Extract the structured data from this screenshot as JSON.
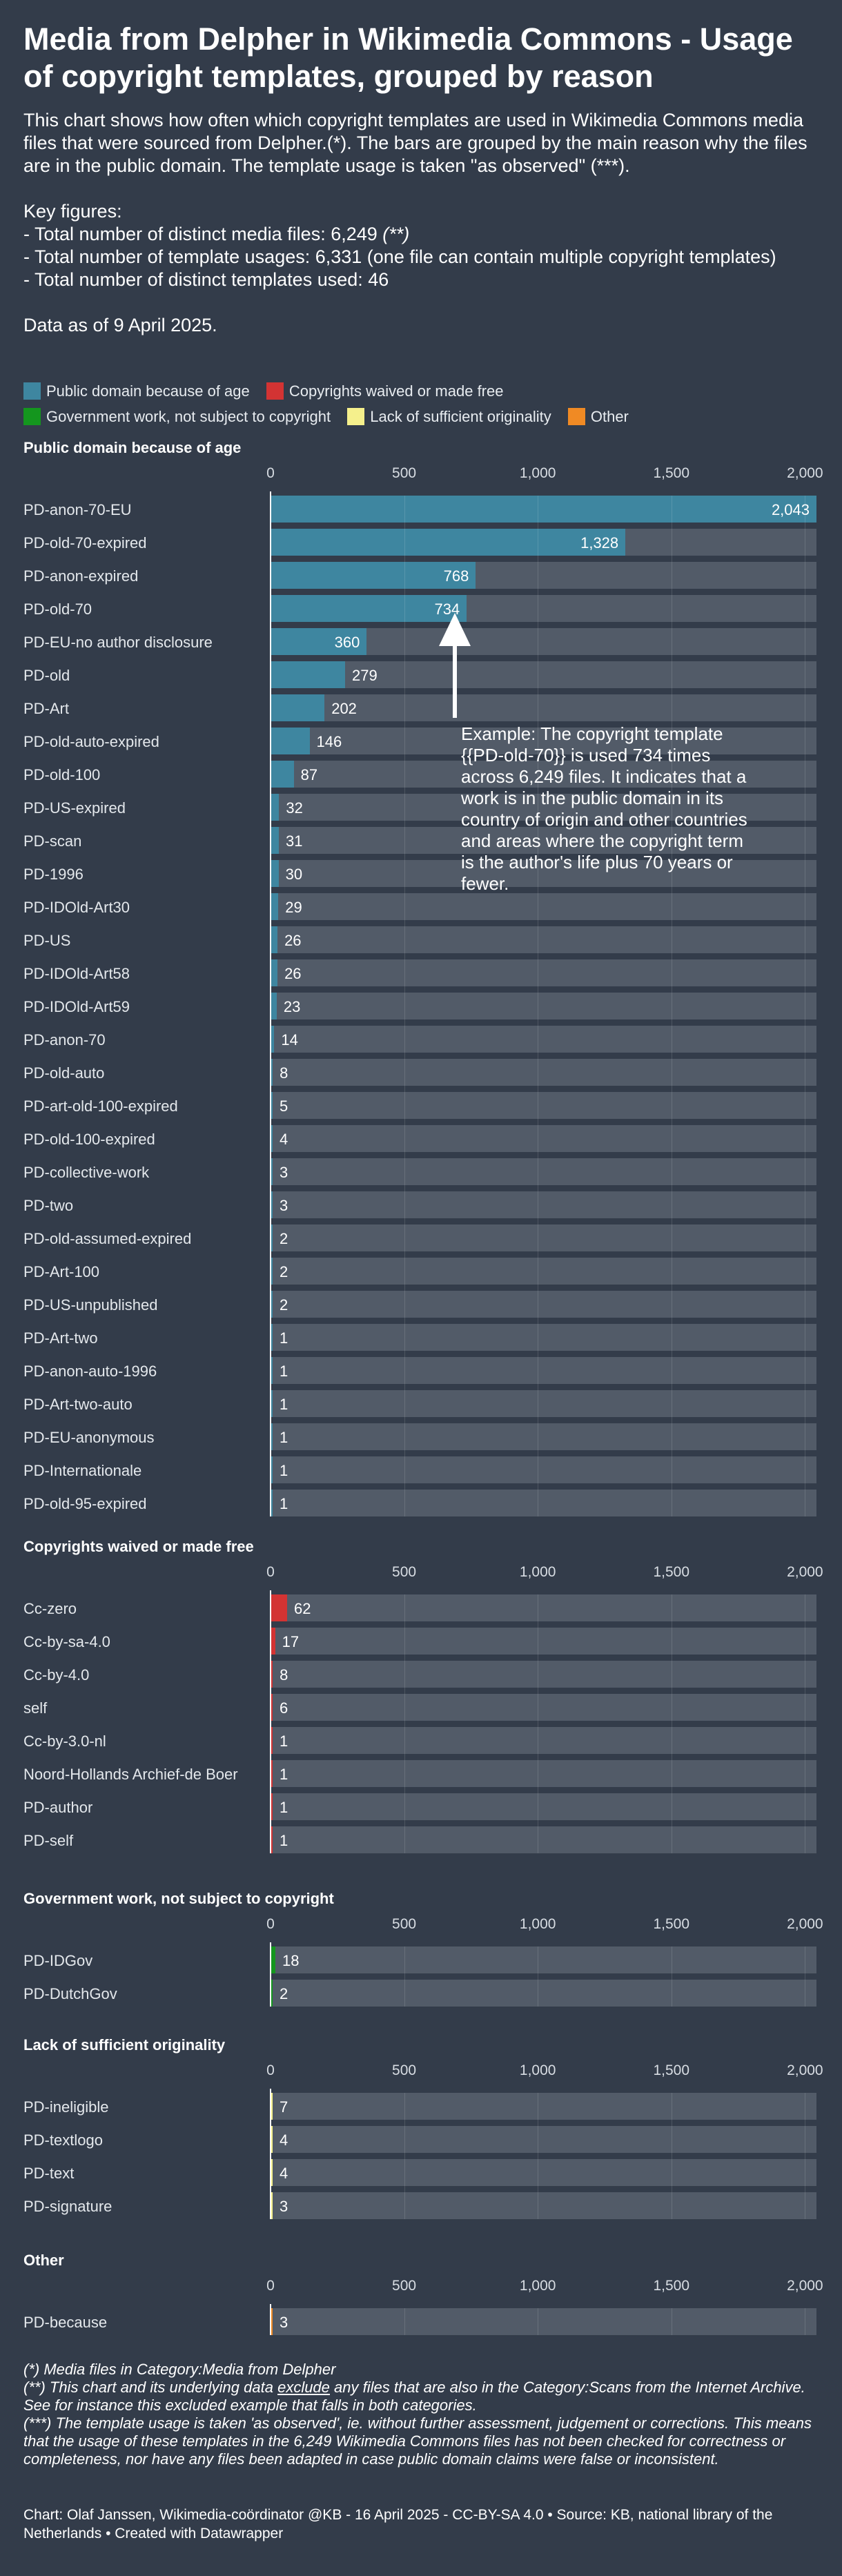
{
  "header": {
    "title": "Media from Delpher in Wikimedia Commons - Usage of copyright templates, grouped by reason",
    "description": "This chart shows how often which copyright templates are used in Wikimedia Commons media files that were sourced from Delpher.(*). The bars are grouped by the main reason why the files are in the public domain. The template usage is taken \"as observed\" (***).",
    "key_figures_heading": "Key figures:",
    "key_figure_1": "- Total number of distinct media files: 6,249 ",
    "key_figure_1_note": "(**)",
    "key_figure_2": "- Total number of template usages: 6,331 (one file can contain multiple copyright templates)",
    "key_figure_3": "- Total number of distinct templates used: 46",
    "data_date": "Data as of 9 April 2025."
  },
  "legend": [
    {
      "label": "Public domain because of age",
      "color": "#3e86a0"
    },
    {
      "label": "Copyrights waived or made free",
      "color": "#d33333"
    },
    {
      "label": "Government work, not subject to copyright",
      "color": "#14961e"
    },
    {
      "label": "Lack of sufficient originality",
      "color": "#f5f08c"
    },
    {
      "label": "Other",
      "color": "#f08a24"
    }
  ],
  "annotation": {
    "text": "Example: The copyright template {{PD-old-70}} is used 734 times across 6,249 files. It indicates that a work is in the public domain in its country of origin and other countries and areas where the copyright term is the author's life plus 70 years or fewer."
  },
  "chart_data": [
    {
      "type": "bar",
      "title": "Public domain because of age",
      "color": "#3e86a0",
      "ticks": [
        "0",
        "500",
        "1,000",
        "1,500",
        "2,000"
      ],
      "xlim": [
        0,
        2043
      ],
      "categories": [
        "PD-anon-70-EU",
        "PD-old-70-expired",
        "PD-anon-expired",
        "PD-old-70",
        "PD-EU-no author disclosure",
        "PD-old",
        "PD-Art",
        "PD-old-auto-expired",
        "PD-old-100",
        "PD-US-expired",
        "PD-scan",
        "PD-1996",
        "PD-IDOld-Art30",
        "PD-US",
        "PD-IDOld-Art58",
        "PD-IDOld-Art59",
        "PD-anon-70",
        "PD-old-auto",
        "PD-art-old-100-expired",
        "PD-old-100-expired",
        "PD-collective-work",
        "PD-two",
        "PD-old-assumed-expired",
        "PD-Art-100",
        "PD-US-unpublished",
        "PD-Art-two",
        "PD-anon-auto-1996",
        "PD-Art-two-auto",
        "PD-EU-anonymous",
        "PD-Internationale",
        "PD-old-95-expired"
      ],
      "values": [
        2043,
        1328,
        768,
        734,
        360,
        279,
        202,
        146,
        87,
        32,
        31,
        30,
        29,
        26,
        26,
        23,
        14,
        8,
        5,
        4,
        3,
        3,
        2,
        2,
        2,
        1,
        1,
        1,
        1,
        1,
        1
      ],
      "labels": [
        "2,043",
        "1,328",
        "768",
        "734",
        "360",
        "279",
        "202",
        "146",
        "87",
        "32",
        "31",
        "30",
        "29",
        "26",
        "26",
        "23",
        "14",
        "8",
        "5",
        "4",
        "3",
        "3",
        "2",
        "2",
        "2",
        "1",
        "1",
        "1",
        "1",
        "1",
        "1"
      ]
    },
    {
      "type": "bar",
      "title": "Copyrights waived or made free",
      "color": "#d33333",
      "ticks": [
        "0",
        "500",
        "1,000",
        "1,500",
        "2,000"
      ],
      "xlim": [
        0,
        2043
      ],
      "categories": [
        "Cc-zero",
        "Cc-by-sa-4.0",
        "Cc-by-4.0",
        "self",
        "Cc-by-3.0-nl",
        "Noord-Hollands Archief-de Boer",
        "PD-author",
        "PD-self"
      ],
      "values": [
        62,
        17,
        8,
        6,
        1,
        1,
        1,
        1
      ],
      "labels": [
        "62",
        "17",
        "8",
        "6",
        "1",
        "1",
        "1",
        "1"
      ]
    },
    {
      "type": "bar",
      "title": "Government work, not subject to copyright",
      "color": "#14961e",
      "ticks": [
        "0",
        "500",
        "1,000",
        "1,500",
        "2,000"
      ],
      "xlim": [
        0,
        2043
      ],
      "categories": [
        "PD-IDGov",
        "PD-DutchGov"
      ],
      "values": [
        18,
        2
      ],
      "labels": [
        "18",
        "2"
      ]
    },
    {
      "type": "bar",
      "title": "Lack of sufficient originality",
      "color": "#f5f08c",
      "ticks": [
        "0",
        "500",
        "1,000",
        "1,500",
        "2,000"
      ],
      "xlim": [
        0,
        2043
      ],
      "categories": [
        "PD-ineligible",
        "PD-textlogo",
        "PD-text",
        "PD-signature"
      ],
      "values": [
        7,
        4,
        4,
        3
      ],
      "labels": [
        "7",
        "4",
        "4",
        "3"
      ]
    },
    {
      "type": "bar",
      "title": "Other",
      "color": "#f08a24",
      "ticks": [
        "0",
        "500",
        "1,000",
        "1,500",
        "2,000"
      ],
      "xlim": [
        0,
        2043
      ],
      "categories": [
        "PD-because"
      ],
      "values": [
        3
      ],
      "labels": [
        "3"
      ]
    }
  ],
  "notes": {
    "note1": "(*) Media files in Category:Media from Delpher",
    "note2_a": "(**) This chart and its underlying data ",
    "note2_b": "exclude",
    "note2_c": " any files that are also in the Category:Scans from the Internet Archive. See for instance this excluded example that falls in both categories.",
    "note3": "(***) The template usage is taken 'as observed', ie. without further assessment, judgement or corrections. This means that the usage of these templates in the 6,249 Wikimedia Commons files has not been checked for correctness or completeness, nor have any files been adapted in case public domain claims were false or inconsistent."
  },
  "footer": {
    "text": "Chart: Olaf Janssen, Wikimedia-coördinator @KB - 16 April 2025 - CC-BY-SA 4.0 • Source: KB, national library of the Netherlands • Created with Datawrapper"
  }
}
